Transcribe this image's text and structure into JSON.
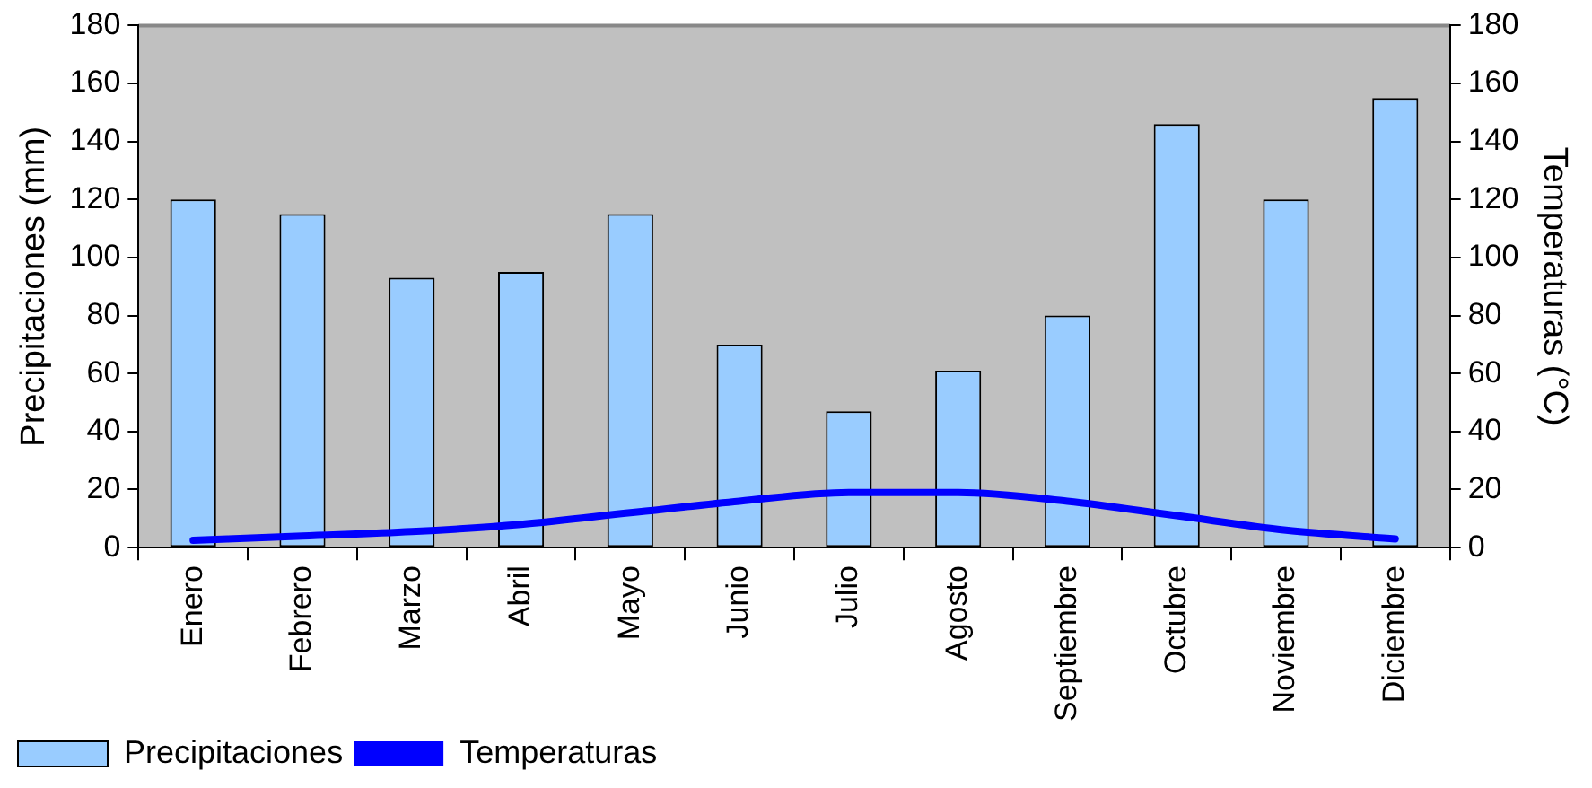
{
  "chart_data": {
    "type": "bar",
    "xlabel": null,
    "ylabel": "Precipitaciones (mm)",
    "y2label": "Temperaturas (°C)",
    "categories": [
      "Enero",
      "Febrero",
      "Marzo",
      "Abril",
      "Mayo",
      "Junio",
      "Julio",
      "Agosto",
      "Septiembre",
      "Octubre",
      "Noviembre",
      "Diciembre"
    ],
    "series": [
      {
        "name": "Precipitaciones",
        "color": "#99ccff",
        "values": [
          120,
          115,
          93,
          95,
          115,
          70,
          47,
          61,
          80,
          146,
          120,
          155
        ]
      },
      {
        "name": "Temperaturas",
        "type": "line",
        "axis": "y2",
        "color": "#0000ff",
        "values": [
          2.5,
          4,
          5.5,
          8,
          12,
          16,
          19,
          19,
          16,
          11,
          6,
          3
        ]
      }
    ],
    "ylim": [
      0,
      180
    ],
    "yticks": [
      0,
      20,
      40,
      60,
      80,
      100,
      120,
      140,
      160,
      180
    ],
    "y2lim": [
      0,
      180
    ],
    "y2ticks": [
      0,
      20,
      40,
      60,
      80,
      100,
      120,
      140,
      160,
      180
    ],
    "grid": false,
    "legend": "bottom",
    "marker": "none"
  }
}
